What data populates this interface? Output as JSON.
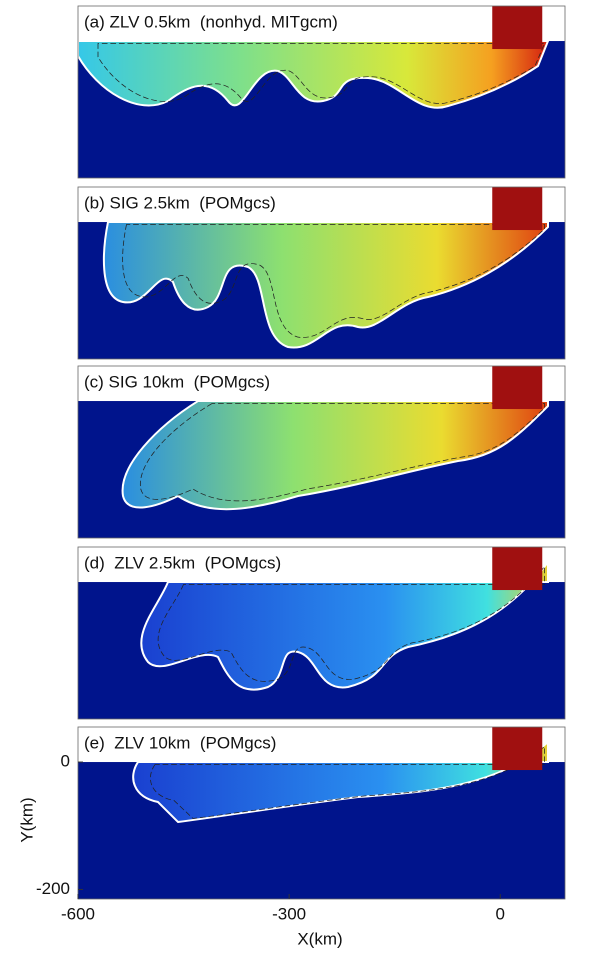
{
  "panels": [
    {
      "title": "(a) ZLV 0.5km  (nonhyd. MITgcm)"
    },
    {
      "title": "(b) SIG 2.5km  (POMgcs)"
    },
    {
      "title": "(c) SIG 10km  (POMgcs)"
    },
    {
      "title": "(d)  ZLV 2.5km  (POMgcs)"
    },
    {
      "title": "(e)  ZLV 10km  (POMgcs)"
    }
  ],
  "x_label": "X(km)",
  "y_label": "Y(km)",
  "xlim": [
    -600,
    92
  ],
  "xticks": [
    -600,
    -300,
    0
  ],
  "ylim": [
    -215,
    55
  ],
  "yticks": [
    0,
    -200
  ]
}
